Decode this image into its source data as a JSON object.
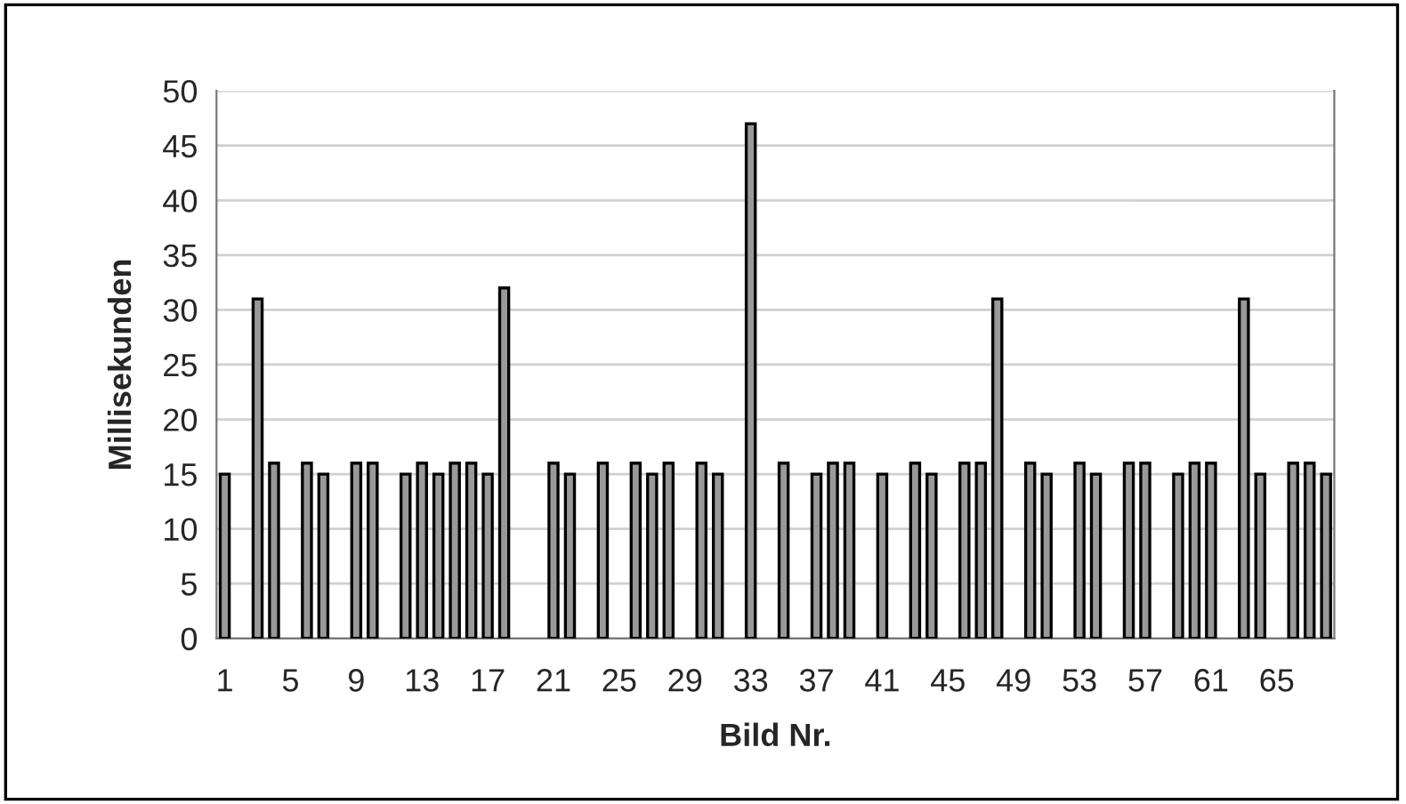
{
  "chart_data": {
    "type": "bar",
    "xlabel": "Bild Nr.",
    "ylabel": "Millisekunden",
    "categories": [
      "1",
      null,
      null,
      null,
      "5",
      null,
      null,
      null,
      "9",
      null,
      null,
      null,
      "13",
      null,
      null,
      null,
      "17",
      null,
      null,
      null,
      "21",
      null,
      null,
      null,
      "25",
      null,
      null,
      null,
      "29",
      null,
      null,
      null,
      "33",
      null,
      null,
      null,
      "37",
      null,
      null,
      null,
      "41",
      null,
      null,
      null,
      "45",
      null,
      null,
      null,
      "49",
      null,
      null,
      null,
      "53",
      null,
      null,
      null,
      "57",
      null,
      null,
      null,
      "61",
      null,
      null,
      null,
      "65",
      null,
      null,
      null
    ],
    "values": [
      15,
      null,
      31,
      16,
      null,
      16,
      15,
      null,
      16,
      16,
      null,
      15,
      16,
      15,
      16,
      16,
      15,
      32,
      null,
      null,
      16,
      15,
      null,
      16,
      null,
      16,
      15,
      16,
      null,
      16,
      15,
      null,
      47,
      null,
      16,
      null,
      15,
      16,
      16,
      null,
      15,
      null,
      16,
      15,
      null,
      16,
      16,
      31,
      null,
      16,
      15,
      null,
      16,
      15,
      null,
      16,
      16,
      null,
      15,
      16,
      16,
      null,
      31,
      15,
      null,
      16,
      16,
      15
    ],
    "color": "#999999",
    "ylim": [
      0,
      50
    ],
    "yticks": [
      0,
      5,
      10,
      15,
      20,
      25,
      30,
      35,
      40,
      45,
      50
    ],
    "grid": "y",
    "legend": false
  }
}
